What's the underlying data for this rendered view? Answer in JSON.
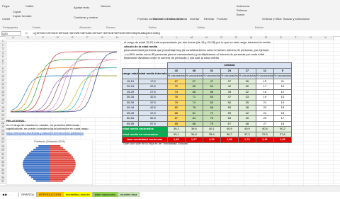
{
  "ribbon": {
    "items": [
      "Pegar",
      "Cortar",
      "Copiar",
      "Copiar formato",
      "Calibri",
      "Ajustar texto",
      "Combinar y centrar",
      "Número",
      "Formato condicional",
      "Dar formato como tabla",
      "Estilos de celda",
      "Insertar",
      "Eliminar",
      "Formato",
      "Autosuma",
      "Rellenar",
      "Borrar",
      "Ordenar y filtrar",
      "Buscar y seleccionar"
    ],
    "groups": [
      "Portapapeles",
      "Fuente",
      "Alineación",
      "Número",
      "Estilos",
      "Celdas",
      "Edición"
    ]
  },
  "formula_bar": {
    "name_box": "G20",
    "fx": "fx",
    "formula": "=((15*G22+20*G23+25*G24+30*G25+35*G26+40*G27+45*G28+50*G29+55*G30)/SUMA(G22:G30))"
  },
  "sheet": {
    "columns": [
      "A",
      "B",
      "C",
      "D",
      "E",
      "F",
      "G",
      "H",
      "I",
      "J",
      "K",
      "L",
      "M",
      "N",
      "O",
      "P",
      "Q",
      "R",
      "S",
      "T",
      "U",
      "V"
    ],
    "rows": [
      1,
      2,
      3,
      4,
      5,
      6,
      7,
      8,
      9,
      10,
      11,
      12,
      13,
      14,
      15,
      16,
      17,
      18,
      19,
      20,
      21,
      22,
      23,
      24,
      25,
      26,
      27,
      28,
      29,
      30,
      31,
      32,
      33,
      34,
      35,
      36,
      37
    ]
  },
  "notes_top": [
    "el rango de edad 15-20 está representado por dos líneas (de 18 y 20-28) por lo que en este rango haremos la media",
    "cálculo de la edad media",
    "para cada edad ponemos que porcentaje hay (lo consideraremos como si fuesen número de personas, por ejemplo",
    ", un 85% serán como 85 personas para el razonamiento) y multiplicamos el número de personas por cada edad",
    "finalmente dividimos entre el número de personas y nos sale la edad media"
  ],
  "left_notes": [
    "RELACIONAL:",
    "en el rango de edades en estudio, no presenta diferencias",
    "significativas, se puede considerar igual población en cada rango",
    "https://elmundo.es/ciencia-y-salud/2019/estructura-poblacion/"
  ],
  "table": {
    "group_header": "semana",
    "headers": [
      "rango edad",
      "edad media intervalo",
      "42",
      "38",
      "31",
      "24",
      "17",
      "11",
      "5"
    ],
    "subheader": "% vacunados",
    "rows": [
      [
        "15-19",
        "17,5",
        "67",
        "57",
        "47",
        "37",
        "26",
        "15",
        "11"
      ],
      [
        "20-24",
        "22,5",
        "72",
        "65",
        "54",
        "42",
        "30",
        "17",
        "12"
      ],
      [
        "25-29",
        "27,5",
        "74",
        "68",
        "58",
        "45",
        "32",
        "18",
        "12"
      ],
      [
        "30-34",
        "32,5",
        "76",
        "71",
        "60",
        "47",
        "33",
        "19",
        "13"
      ],
      [
        "35-39",
        "37,5",
        "79",
        "74",
        "63",
        "50",
        "35",
        "21",
        "14"
      ],
      [
        "40-44",
        "42,5",
        "82",
        "78",
        "68",
        "55",
        "38",
        "22",
        "15"
      ],
      [
        "45-49",
        "47,5",
        "85",
        "81",
        "72",
        "59",
        "42",
        "24",
        "16"
      ],
      [
        "50-54",
        "52,5",
        "87",
        "84",
        "76",
        "63",
        "45",
        "25",
        "17"
      ],
      [
        "55-59",
        "57,5",
        "89",
        "86",
        "79",
        "67",
        "48",
        "27",
        "18"
      ]
    ],
    "summary": [
      [
        "edad media vacunados",
        "39,2",
        "39,6",
        "40,1",
        "40,6",
        "40,9",
        "40,4",
        "40,2"
      ],
      [
        "edad media no vacunados",
        "33,1",
        "34,8",
        "35,9",
        "36,7",
        "37,2",
        "37,5",
        "37,6"
      ],
      [
        "tasa mortalidad vac/novac",
        "1,49",
        "1,27",
        "2,39",
        "2,55",
        "1,74",
        "1,41",
        "1,65"
      ]
    ]
  },
  "footnote": "Vale solo sale de la hoja es de \"mortalidad_Estudio\"",
  "pyramid_title": "Población (Dinámica 2019)",
  "tabs": [
    "GRAFICA",
    "INTRODUCCION",
    "mortalidad_estudio",
    "edad vacunados",
    "muertes tasa"
  ]
}
